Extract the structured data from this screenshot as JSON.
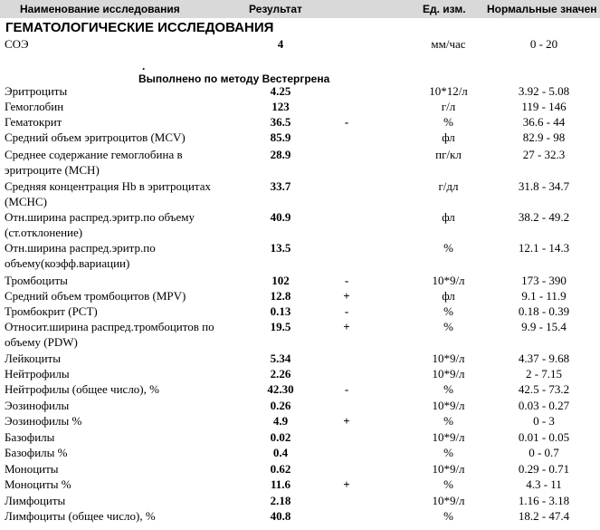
{
  "header": {
    "col_name": "Наименование исследования",
    "col_result": "Результат",
    "col_unit": "Ед. изм.",
    "col_norm": "Нормальные значен"
  },
  "section": {
    "title": "ГЕМАТОЛОГИЧЕСКИЕ ИССЛЕДОВАНИЯ"
  },
  "method": {
    "dot": ".",
    "text": "Выполнено по методу Вестергрена"
  },
  "rows": [
    {
      "name": "СОЭ",
      "value": "4",
      "flag": "",
      "unit": "мм/час",
      "norm": "0 - 20"
    },
    {
      "name": "Эритроциты",
      "value": "4.25",
      "flag": "",
      "unit": "10*12/л",
      "norm": "3.92 - 5.08"
    },
    {
      "name": "Гемоглобин",
      "value": "123",
      "flag": "",
      "unit": "г/л",
      "norm": "119 - 146"
    },
    {
      "name": "Гематокрит",
      "value": "36.5",
      "flag": "-",
      "unit": "%",
      "norm": "36.6 - 44"
    },
    {
      "name": "Средний объем эритроцитов (MCV)",
      "value": "85.9",
      "flag": "",
      "unit": "фл",
      "norm": "82.9 - 98"
    },
    {
      "name": "Среднее содержание гемоглобина в эритроците (MCH)",
      "value": "28.9",
      "flag": "",
      "unit": "пг/кл",
      "norm": "27 - 32.3"
    },
    {
      "name": "Средняя концентрация Hb в эритроцитах (MCHC)",
      "value": "33.7",
      "flag": "",
      "unit": "г/дл",
      "norm": "31.8 - 34.7"
    },
    {
      "name": "Отн.ширина распред.эритр.по объему (ст.отклонение)",
      "value": "40.9",
      "flag": "",
      "unit": "фл",
      "norm": "38.2 - 49.2"
    },
    {
      "name": "Отн.ширина распред.эритр.по объему(коэфф.вариации)",
      "value": "13.5",
      "flag": "",
      "unit": "%",
      "norm": "12.1 - 14.3"
    },
    {
      "name": "Тромбоциты",
      "value": "102",
      "flag": "-",
      "unit": "10*9/л",
      "norm": "173 - 390"
    },
    {
      "name": "Средний объем тромбоцитов (MPV)",
      "value": "12.8",
      "flag": "+",
      "unit": "фл",
      "norm": "9.1 - 11.9"
    },
    {
      "name": "Тромбокрит (PCT)",
      "value": "0.13",
      "flag": "-",
      "unit": "%",
      "norm": "0.18 - 0.39"
    },
    {
      "name": "Относит.ширина распред.тромбоцитов по объему (PDW)",
      "value": "19.5",
      "flag": "+",
      "unit": "%",
      "norm": "9.9 - 15.4"
    },
    {
      "name": "Лейкоциты",
      "value": "5.34",
      "flag": "",
      "unit": "10*9/л",
      "norm": "4.37 - 9.68"
    },
    {
      "name": "Нейтрофилы",
      "value": "2.26",
      "flag": "",
      "unit": "10*9/л",
      "norm": "2 - 7.15"
    },
    {
      "name": "Нейтрофилы (общее число), %",
      "value": "42.30",
      "flag": "-",
      "unit": "%",
      "norm": "42.5 - 73.2"
    },
    {
      "name": "Эозинофилы",
      "value": "0.26",
      "flag": "",
      "unit": "10*9/л",
      "norm": "0.03 - 0.27"
    },
    {
      "name": "Эозинофилы %",
      "value": "4.9",
      "flag": "+",
      "unit": "%",
      "norm": "0 - 3"
    },
    {
      "name": "Базофилы",
      "value": "0.02",
      "flag": "",
      "unit": "10*9/л",
      "norm": "0.01 - 0.05"
    },
    {
      "name": "Базофилы %",
      "value": "0.4",
      "flag": "",
      "unit": "%",
      "norm": "0 - 0.7"
    },
    {
      "name": "Моноциты",
      "value": "0.62",
      "flag": "",
      "unit": "10*9/л",
      "norm": "0.29 - 0.71"
    },
    {
      "name": "Моноциты %",
      "value": "11.6",
      "flag": "+",
      "unit": "%",
      "norm": "4.3 - 11"
    },
    {
      "name": "Лимфоциты",
      "value": "2.18",
      "flag": "",
      "unit": "10*9/л",
      "norm": "1.16 - 3.18"
    },
    {
      "name": "Лимфоциты (общее число), %",
      "value": "40.8",
      "flag": "",
      "unit": "%",
      "norm": "18.2 - 47.4"
    }
  ]
}
